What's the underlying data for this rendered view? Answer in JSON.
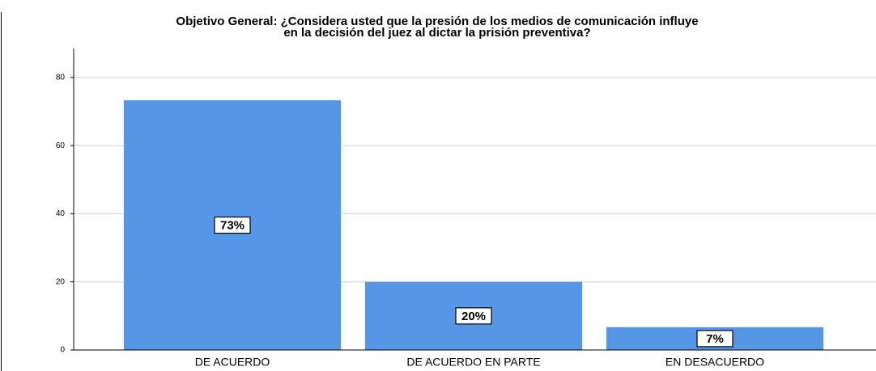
{
  "chart_data": {
    "type": "bar",
    "title": [
      "Objetivo General: ¿Considera usted que la presión de los medios de comunicación influye",
      "en la  decisión del juez al dictar la prisión preventiva?"
    ],
    "categories": [
      "DE ACUERDO",
      "DE ACUERDO EN PARTE",
      "EN DESACUERDO"
    ],
    "values": [
      73.3,
      20,
      6.7
    ],
    "value_labels": [
      "73%",
      "20%",
      "7%"
    ],
    "color": "#5596e6",
    "ylim": [
      0,
      88.5
    ],
    "yticks": [
      0,
      20,
      40,
      60,
      80
    ],
    "grid": true
  }
}
